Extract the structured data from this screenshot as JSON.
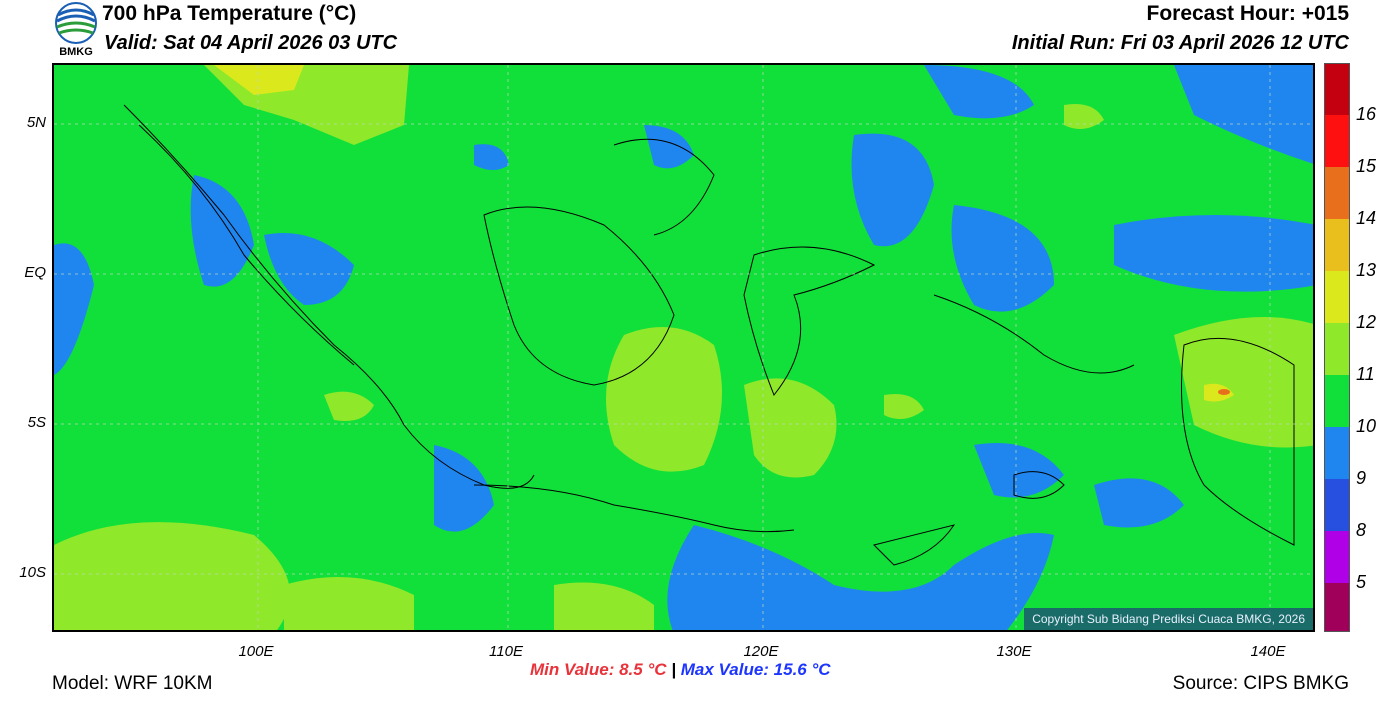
{
  "header": {
    "title": "700 hPa Temperature (°C)",
    "valid": "Valid: Sat 04 April 2026 03 UTC",
    "forecast_hour": "Forecast Hour: +015",
    "initial_run": "Initial Run: Fri 03 April 2026 12 UTC",
    "logo_text": "BMKG"
  },
  "axes": {
    "lat_labels": [
      "5N",
      "EQ",
      "5S",
      "10S"
    ],
    "lon_labels": [
      "100E",
      "110E",
      "120E",
      "130E",
      "140E"
    ]
  },
  "colorbar": {
    "labels": [
      "16",
      "15",
      "14",
      "13",
      "12",
      "11",
      "10",
      "9",
      "8",
      "5"
    ],
    "colors": [
      "#c40010",
      "#ff1010",
      "#e8701c",
      "#e8bf1c",
      "#dbe81c",
      "#8fe82a",
      "#11e03a",
      "#1f86f0",
      "#2850e0",
      "#b000e8",
      "#a0005a"
    ]
  },
  "stats": {
    "min_label": "Min Value: 8.5 °C",
    "separator": "|",
    "max_label": "Max Value: 15.6 °C"
  },
  "footer": {
    "model": "Model: WRF 10KM",
    "source": "Source: CIPS BMKG",
    "copyright": "Copyright Sub Bidang Prediksi Cuaca BMKG, 2026"
  },
  "colors": {
    "background_field": "#11e03a",
    "cool_patch": "#1f86f0",
    "warm_patch": "#8fe82a",
    "hot_patch": "#dbe81c"
  }
}
